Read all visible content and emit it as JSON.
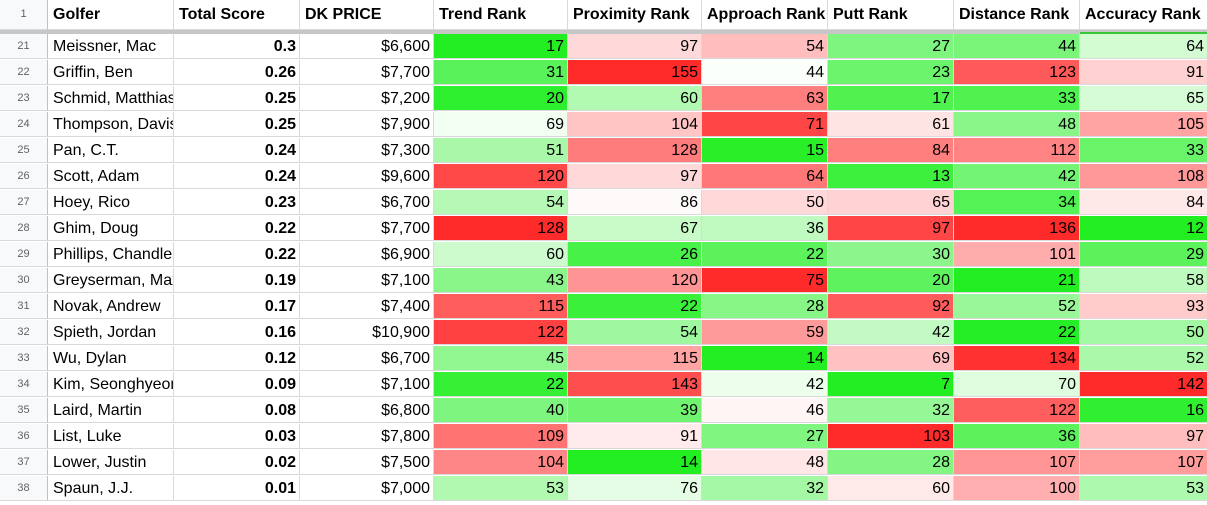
{
  "header": {
    "row_number": "1",
    "columns": [
      "Golfer",
      "Total Score",
      "DK PRICE",
      "Trend Rank",
      "Proximity Rank",
      "Approach Rank",
      "Putt Rank",
      "Distance Rank",
      "Accuracy Rank"
    ]
  },
  "rows": [
    {
      "n": "21",
      "golfer": "Meissner, Mac",
      "total": "0.3",
      "price": "$6,600",
      "trend": "17",
      "prox": "97",
      "appr": "54",
      "putt": "27",
      "dist": "44",
      "acc": "64"
    },
    {
      "n": "22",
      "golfer": "Griffin, Ben",
      "total": "0.26",
      "price": "$7,700",
      "trend": "31",
      "prox": "155",
      "appr": "44",
      "putt": "23",
      "dist": "123",
      "acc": "91"
    },
    {
      "n": "23",
      "golfer": "Schmid, Matthias",
      "total": "0.25",
      "price": "$7,200",
      "trend": "20",
      "prox": "60",
      "appr": "63",
      "putt": "17",
      "dist": "33",
      "acc": "65"
    },
    {
      "n": "24",
      "golfer": "Thompson, Davis",
      "total": "0.25",
      "price": "$7,900",
      "trend": "69",
      "prox": "104",
      "appr": "71",
      "putt": "61",
      "dist": "48",
      "acc": "105"
    },
    {
      "n": "25",
      "golfer": "Pan, C.T.",
      "total": "0.24",
      "price": "$7,300",
      "trend": "51",
      "prox": "128",
      "appr": "15",
      "putt": "84",
      "dist": "112",
      "acc": "33"
    },
    {
      "n": "26",
      "golfer": "Scott, Adam",
      "total": "0.24",
      "price": "$9,600",
      "trend": "120",
      "prox": "97",
      "appr": "64",
      "putt": "13",
      "dist": "42",
      "acc": "108"
    },
    {
      "n": "27",
      "golfer": "Hoey, Rico",
      "total": "0.23",
      "price": "$6,700",
      "trend": "54",
      "prox": "86",
      "appr": "50",
      "putt": "65",
      "dist": "34",
      "acc": "84"
    },
    {
      "n": "28",
      "golfer": "Ghim, Doug",
      "total": "0.22",
      "price": "$7,700",
      "trend": "128",
      "prox": "67",
      "appr": "36",
      "putt": "97",
      "dist": "136",
      "acc": "12"
    },
    {
      "n": "29",
      "golfer": "Phillips, Chandler",
      "total": "0.22",
      "price": "$6,900",
      "trend": "60",
      "prox": "26",
      "appr": "22",
      "putt": "30",
      "dist": "101",
      "acc": "29"
    },
    {
      "n": "30",
      "golfer": "Greyserman, Max",
      "total": "0.19",
      "price": "$7,100",
      "trend": "43",
      "prox": "120",
      "appr": "75",
      "putt": "20",
      "dist": "21",
      "acc": "58"
    },
    {
      "n": "31",
      "golfer": "Novak, Andrew",
      "total": "0.17",
      "price": "$7,400",
      "trend": "115",
      "prox": "22",
      "appr": "28",
      "putt": "92",
      "dist": "52",
      "acc": "93"
    },
    {
      "n": "32",
      "golfer": "Spieth, Jordan",
      "total": "0.16",
      "price": "$10,900",
      "trend": "122",
      "prox": "54",
      "appr": "59",
      "putt": "42",
      "dist": "22",
      "acc": "50"
    },
    {
      "n": "33",
      "golfer": "Wu, Dylan",
      "total": "0.12",
      "price": "$6,700",
      "trend": "45",
      "prox": "115",
      "appr": "14",
      "putt": "69",
      "dist": "134",
      "acc": "52"
    },
    {
      "n": "34",
      "golfer": "Kim, Seonghyeon",
      "total": "0.09",
      "price": "$7,100",
      "trend": "22",
      "prox": "143",
      "appr": "42",
      "putt": "7",
      "dist": "70",
      "acc": "142"
    },
    {
      "n": "35",
      "golfer": "Laird, Martin",
      "total": "0.08",
      "price": "$6,800",
      "trend": "40",
      "prox": "39",
      "appr": "46",
      "putt": "32",
      "dist": "122",
      "acc": "16"
    },
    {
      "n": "36",
      "golfer": "List, Luke",
      "total": "0.03",
      "price": "$7,800",
      "trend": "109",
      "prox": "91",
      "appr": "27",
      "putt": "103",
      "dist": "36",
      "acc": "97"
    },
    {
      "n": "37",
      "golfer": "Lower, Justin",
      "total": "0.02",
      "price": "$7,500",
      "trend": "104",
      "prox": "14",
      "appr": "48",
      "putt": "28",
      "dist": "107",
      "acc": "107"
    },
    {
      "n": "38",
      "golfer": "Spaun, J.J.",
      "total": "0.01",
      "price": "$7,000",
      "trend": "53",
      "prox": "76",
      "appr": "32",
      "putt": "60",
      "dist": "100",
      "acc": "53"
    }
  ],
  "colors": {
    "green_strong": "#22ee22",
    "white_mid": "#ffffff",
    "red_strong": "#ff2a2a",
    "freeze_bar": "#c7c7c7",
    "gridline": "#d9d9d9"
  }
}
